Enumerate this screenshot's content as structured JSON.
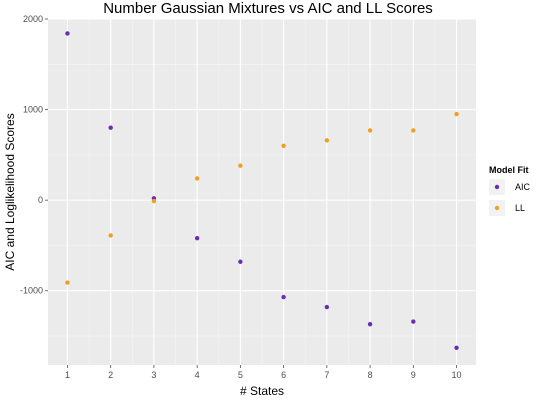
{
  "chart_data": {
    "type": "scatter",
    "title": "Number Gaussian Mixtures vs AIC and LL Scores",
    "xlabel": "# States",
    "ylabel": "AIC and Loglikelihood Scores",
    "xlim": [
      0.55,
      10.45
    ],
    "ylim": [
      -1820,
      2000
    ],
    "x_ticks": [
      "1",
      "2",
      "3",
      "4",
      "5",
      "6",
      "7",
      "8",
      "9",
      "10"
    ],
    "y_ticks": [
      "-1000",
      "0",
      "1000",
      "2000"
    ],
    "grid": true,
    "legend": {
      "title": "Model Fit",
      "position": "right"
    },
    "series": [
      {
        "name": "AIC",
        "color": "#6a2db3",
        "x": [
          1,
          2,
          3,
          4,
          5,
          6,
          7,
          8,
          9,
          10
        ],
        "values": [
          1840,
          800,
          20,
          -420,
          -680,
          -1070,
          -1180,
          -1370,
          -1340,
          -1630
        ]
      },
      {
        "name": "LL",
        "color": "#f0a020",
        "x": [
          1,
          2,
          3,
          4,
          5,
          6,
          7,
          8,
          9,
          10
        ],
        "values": [
          -910,
          -390,
          -10,
          240,
          380,
          600,
          660,
          770,
          770,
          950
        ]
      }
    ]
  }
}
